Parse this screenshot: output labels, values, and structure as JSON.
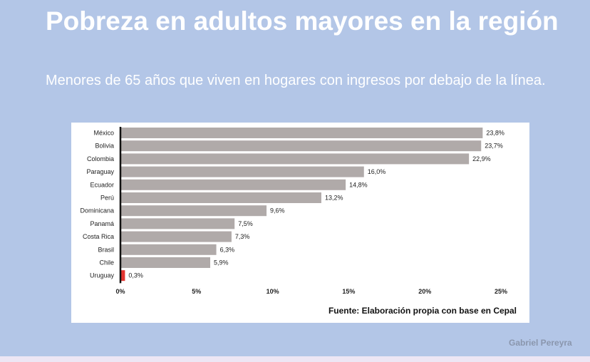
{
  "header": {
    "title": "Pobreza en adultos mayores en la región",
    "subtitle": "Menores de 65 años que viven en hogares con ingresos por debajo de la línea."
  },
  "footer": {
    "source": "Fuente: Elaboración propia con base en Cepal",
    "author": "Gabriel Pereyra"
  },
  "chart_data": {
    "type": "bar",
    "orientation": "horizontal",
    "title": "Pobreza en adultos mayores en la región",
    "subtitle": "Menores de 65 años que viven en hogares con ingresos por debajo de la línea.",
    "categories": [
      "México",
      "Bolivia",
      "Colombia",
      "Paraguay",
      "Ecuador",
      "Perú",
      "Dominicana",
      "Panamá",
      "Costa Rica",
      "Brasil",
      "Chile",
      "Uruguay"
    ],
    "values": [
      23.8,
      23.7,
      22.9,
      16.0,
      14.8,
      13.2,
      9.6,
      7.5,
      7.3,
      6.3,
      5.9,
      0.3
    ],
    "value_labels": [
      "23,8%",
      "23,7%",
      "22,9%",
      "16,0%",
      "14,8%",
      "13,2%",
      "9,6%",
      "7,5%",
      "7,3%",
      "6,3%",
      "5,9%",
      "0,3%"
    ],
    "xlim": [
      0,
      25
    ],
    "xticks": [
      0,
      5,
      10,
      15,
      20,
      25
    ],
    "xtick_labels": [
      "0%",
      "5%",
      "10%",
      "15%",
      "20%",
      "25%"
    ],
    "colors": {
      "bar": "#b0aaa9",
      "highlight": "#e3342f",
      "axis": "#111111"
    },
    "highlight_category": "Uruguay",
    "xlabel": "",
    "ylabel": ""
  }
}
